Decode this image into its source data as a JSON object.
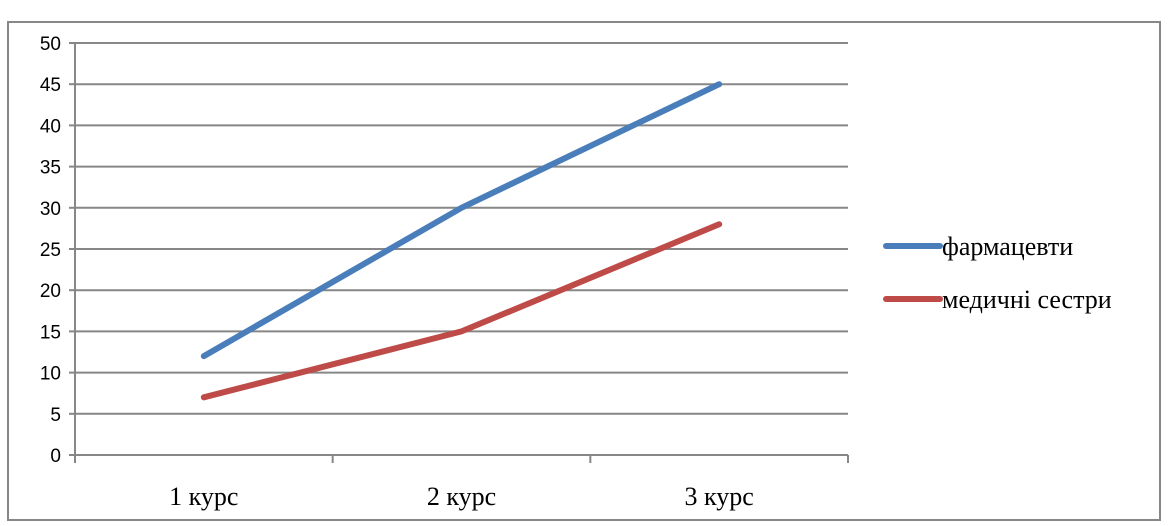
{
  "chart_data": {
    "type": "line",
    "categories": [
      "1 курс",
      "2 курс",
      "3 курс"
    ],
    "series": [
      {
        "name": "фармацевти",
        "values": [
          12,
          30,
          45
        ],
        "color": "#4a7ebb"
      },
      {
        "name": "медичні сестри",
        "values": [
          7,
          15,
          28
        ],
        "color": "#be4b48"
      }
    ],
    "yticks": [
      0,
      5,
      10,
      15,
      20,
      25,
      30,
      35,
      40,
      45,
      50
    ],
    "ylim": [
      0,
      50
    ],
    "grid": true,
    "legend_position": "right",
    "gridline_color": "#878787",
    "axis_color": "#878787",
    "frame_color": "#878787"
  }
}
